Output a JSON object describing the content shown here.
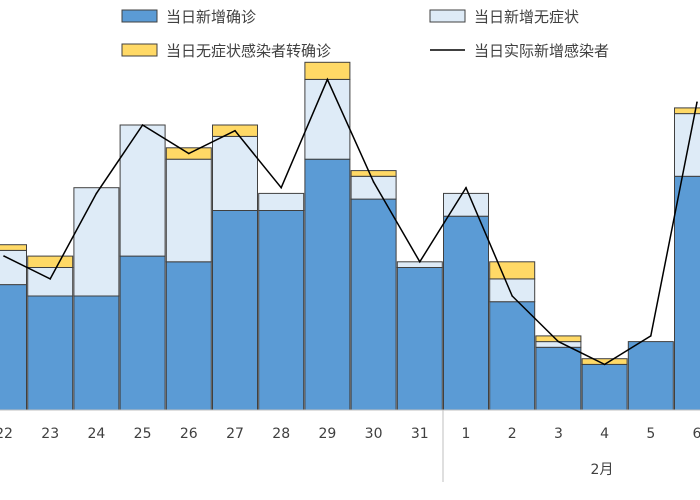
{
  "chart_data": {
    "type": "bar",
    "stacked": true,
    "categories": [
      "22",
      "23",
      "24",
      "25",
      "26",
      "27",
      "28",
      "29",
      "30",
      "31",
      "1",
      "2",
      "3",
      "4",
      "5",
      "6"
    ],
    "month_label": "2月",
    "series": [
      {
        "name": "当日新增确诊",
        "color": "#5B9BD5",
        "values": [
          22,
          20,
          20,
          27,
          26,
          35,
          35,
          44,
          37,
          25,
          34,
          19,
          11,
          8,
          12,
          41
        ]
      },
      {
        "name": "当日新增无症状",
        "color": "#DEEBF7",
        "values": [
          6,
          5,
          19,
          23,
          18,
          13,
          3,
          14,
          4,
          1,
          4,
          4,
          1,
          0,
          0,
          11
        ]
      },
      {
        "name": "当日无症状感染者转确诊",
        "color": "#FFD966",
        "values": [
          1,
          2,
          0,
          0,
          2,
          2,
          0,
          3,
          1,
          0,
          0,
          3,
          1,
          1,
          0,
          1
        ]
      }
    ],
    "line": {
      "name": "当日实际新增感染者",
      "color": "#000000",
      "values": [
        27,
        23,
        38,
        50,
        45,
        49,
        39,
        58,
        40,
        26,
        39,
        20,
        12,
        8,
        13,
        54
      ]
    },
    "legend_position": "top",
    "grid": false
  }
}
